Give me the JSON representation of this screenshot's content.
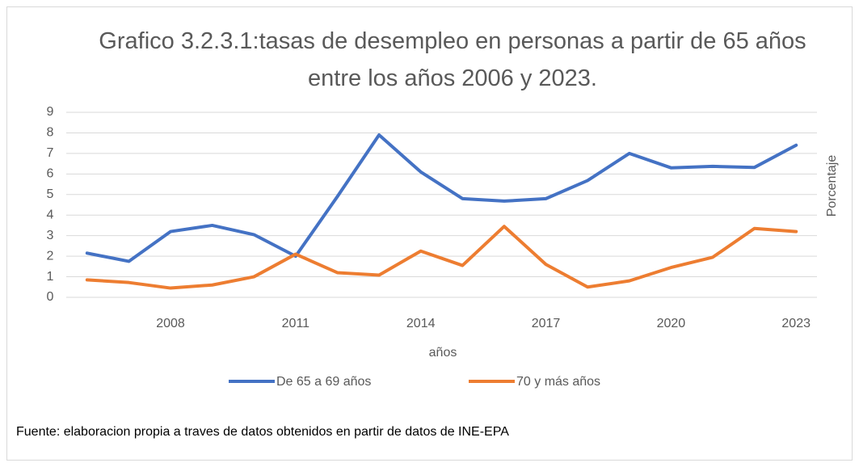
{
  "chart_data": {
    "type": "line",
    "title": "Grafico 3.2.3.1:tasas de desempleo en personas a partir de 65 años entre los años 2006 y 2023.",
    "x_label": "años",
    "y_label": "Porcentaje",
    "source": "Fuente: elaboracion propia a traves de datos obtenidos en partir de datos de INE-EPA",
    "categories": [
      null,
      null,
      "2008",
      null,
      null,
      "2011",
      null,
      null,
      "2014",
      null,
      null,
      "2017",
      null,
      null,
      "2020",
      null,
      null,
      "2023"
    ],
    "series": [
      {
        "name": "De 65 a 69 años",
        "color": "#4472c4",
        "values": [
          2.15,
          1.75,
          3.2,
          3.5,
          3.05,
          2.0,
          4.9,
          7.9,
          6.1,
          4.8,
          4.68,
          4.8,
          5.68,
          7.0,
          6.3,
          6.37,
          6.32,
          7.4
        ]
      },
      {
        "name": "70 y más años",
        "color": "#ed7d31",
        "values": [
          0.85,
          0.72,
          0.45,
          0.6,
          1.0,
          2.1,
          1.2,
          1.08,
          2.25,
          1.55,
          3.45,
          1.6,
          0.5,
          0.8,
          1.45,
          1.95,
          3.35,
          3.2
        ]
      }
    ],
    "ylim": [
      0,
      9
    ],
    "yticks": [
      0,
      1,
      2,
      3,
      4,
      5,
      6,
      7,
      8,
      9
    ],
    "grid": true,
    "legend": "bottom"
  }
}
